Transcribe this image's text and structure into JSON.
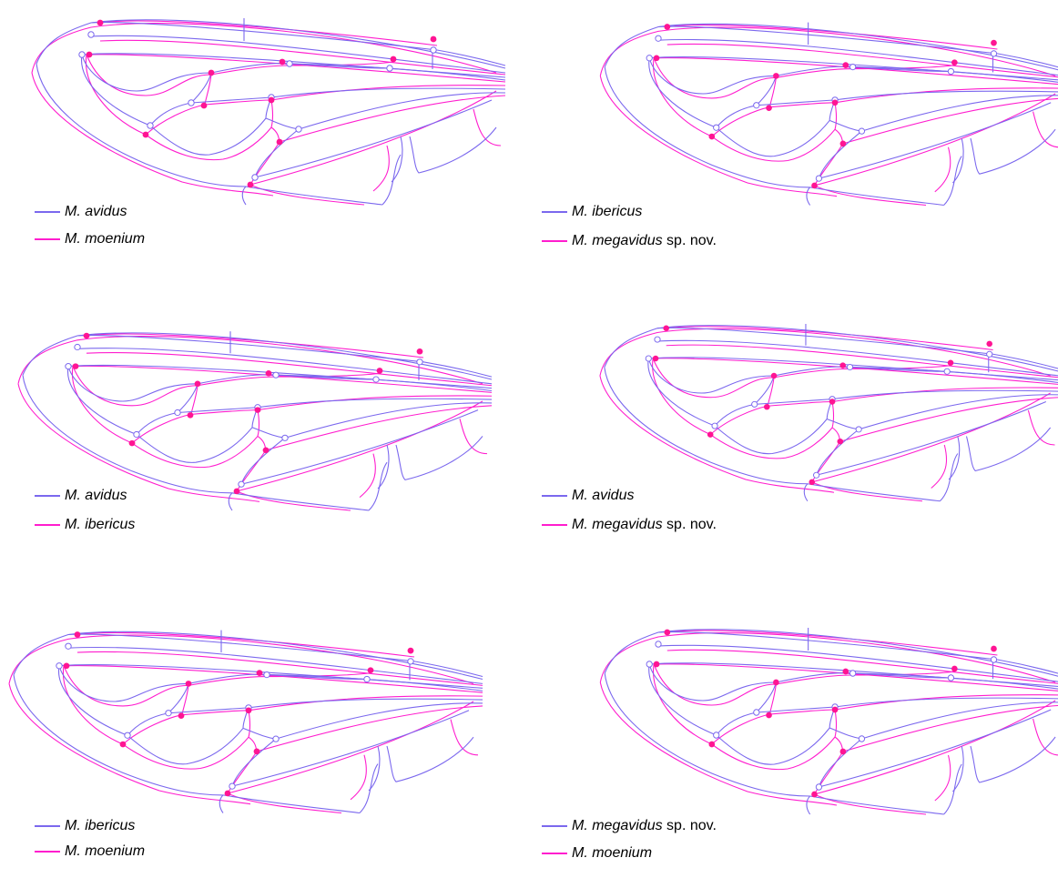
{
  "colors": {
    "blue": "#7b68ee",
    "magenta": "#ff1dce",
    "dot": "#ff1493"
  },
  "panels": [
    {
      "id": "p1",
      "legend": [
        {
          "species": "M. avidus",
          "note": "",
          "color": "#7b68ee"
        },
        {
          "species": "M. moenium",
          "note": "",
          "color": "#ff1dce"
        }
      ]
    },
    {
      "id": "p2",
      "legend": [
        {
          "species": "M. ibericus",
          "note": "",
          "color": "#7b68ee"
        },
        {
          "species": "M. megavidus",
          "note": "sp. nov.",
          "color": "#ff1dce"
        }
      ]
    },
    {
      "id": "p3",
      "legend": [
        {
          "species": "M. avidus",
          "note": "",
          "color": "#7b68ee"
        },
        {
          "species": "M. ibericus",
          "note": "",
          "color": "#ff1dce"
        }
      ]
    },
    {
      "id": "p4",
      "legend": [
        {
          "species": "M. avidus",
          "note": "",
          "color": "#7b68ee"
        },
        {
          "species": "M. megavidus",
          "note": "sp. nov.",
          "color": "#ff1dce"
        }
      ]
    },
    {
      "id": "p5",
      "legend": [
        {
          "species": "M. ibericus",
          "note": "",
          "color": "#7b68ee"
        },
        {
          "species": "M. moenium",
          "note": "",
          "color": "#ff1dce"
        }
      ]
    },
    {
      "id": "p6",
      "legend": [
        {
          "species": "M. megavidus",
          "note": "sp. nov.",
          "color": "#7b68ee"
        },
        {
          "species": "M. moenium",
          "note": "",
          "color": "#ff1dce"
        }
      ]
    }
  ]
}
